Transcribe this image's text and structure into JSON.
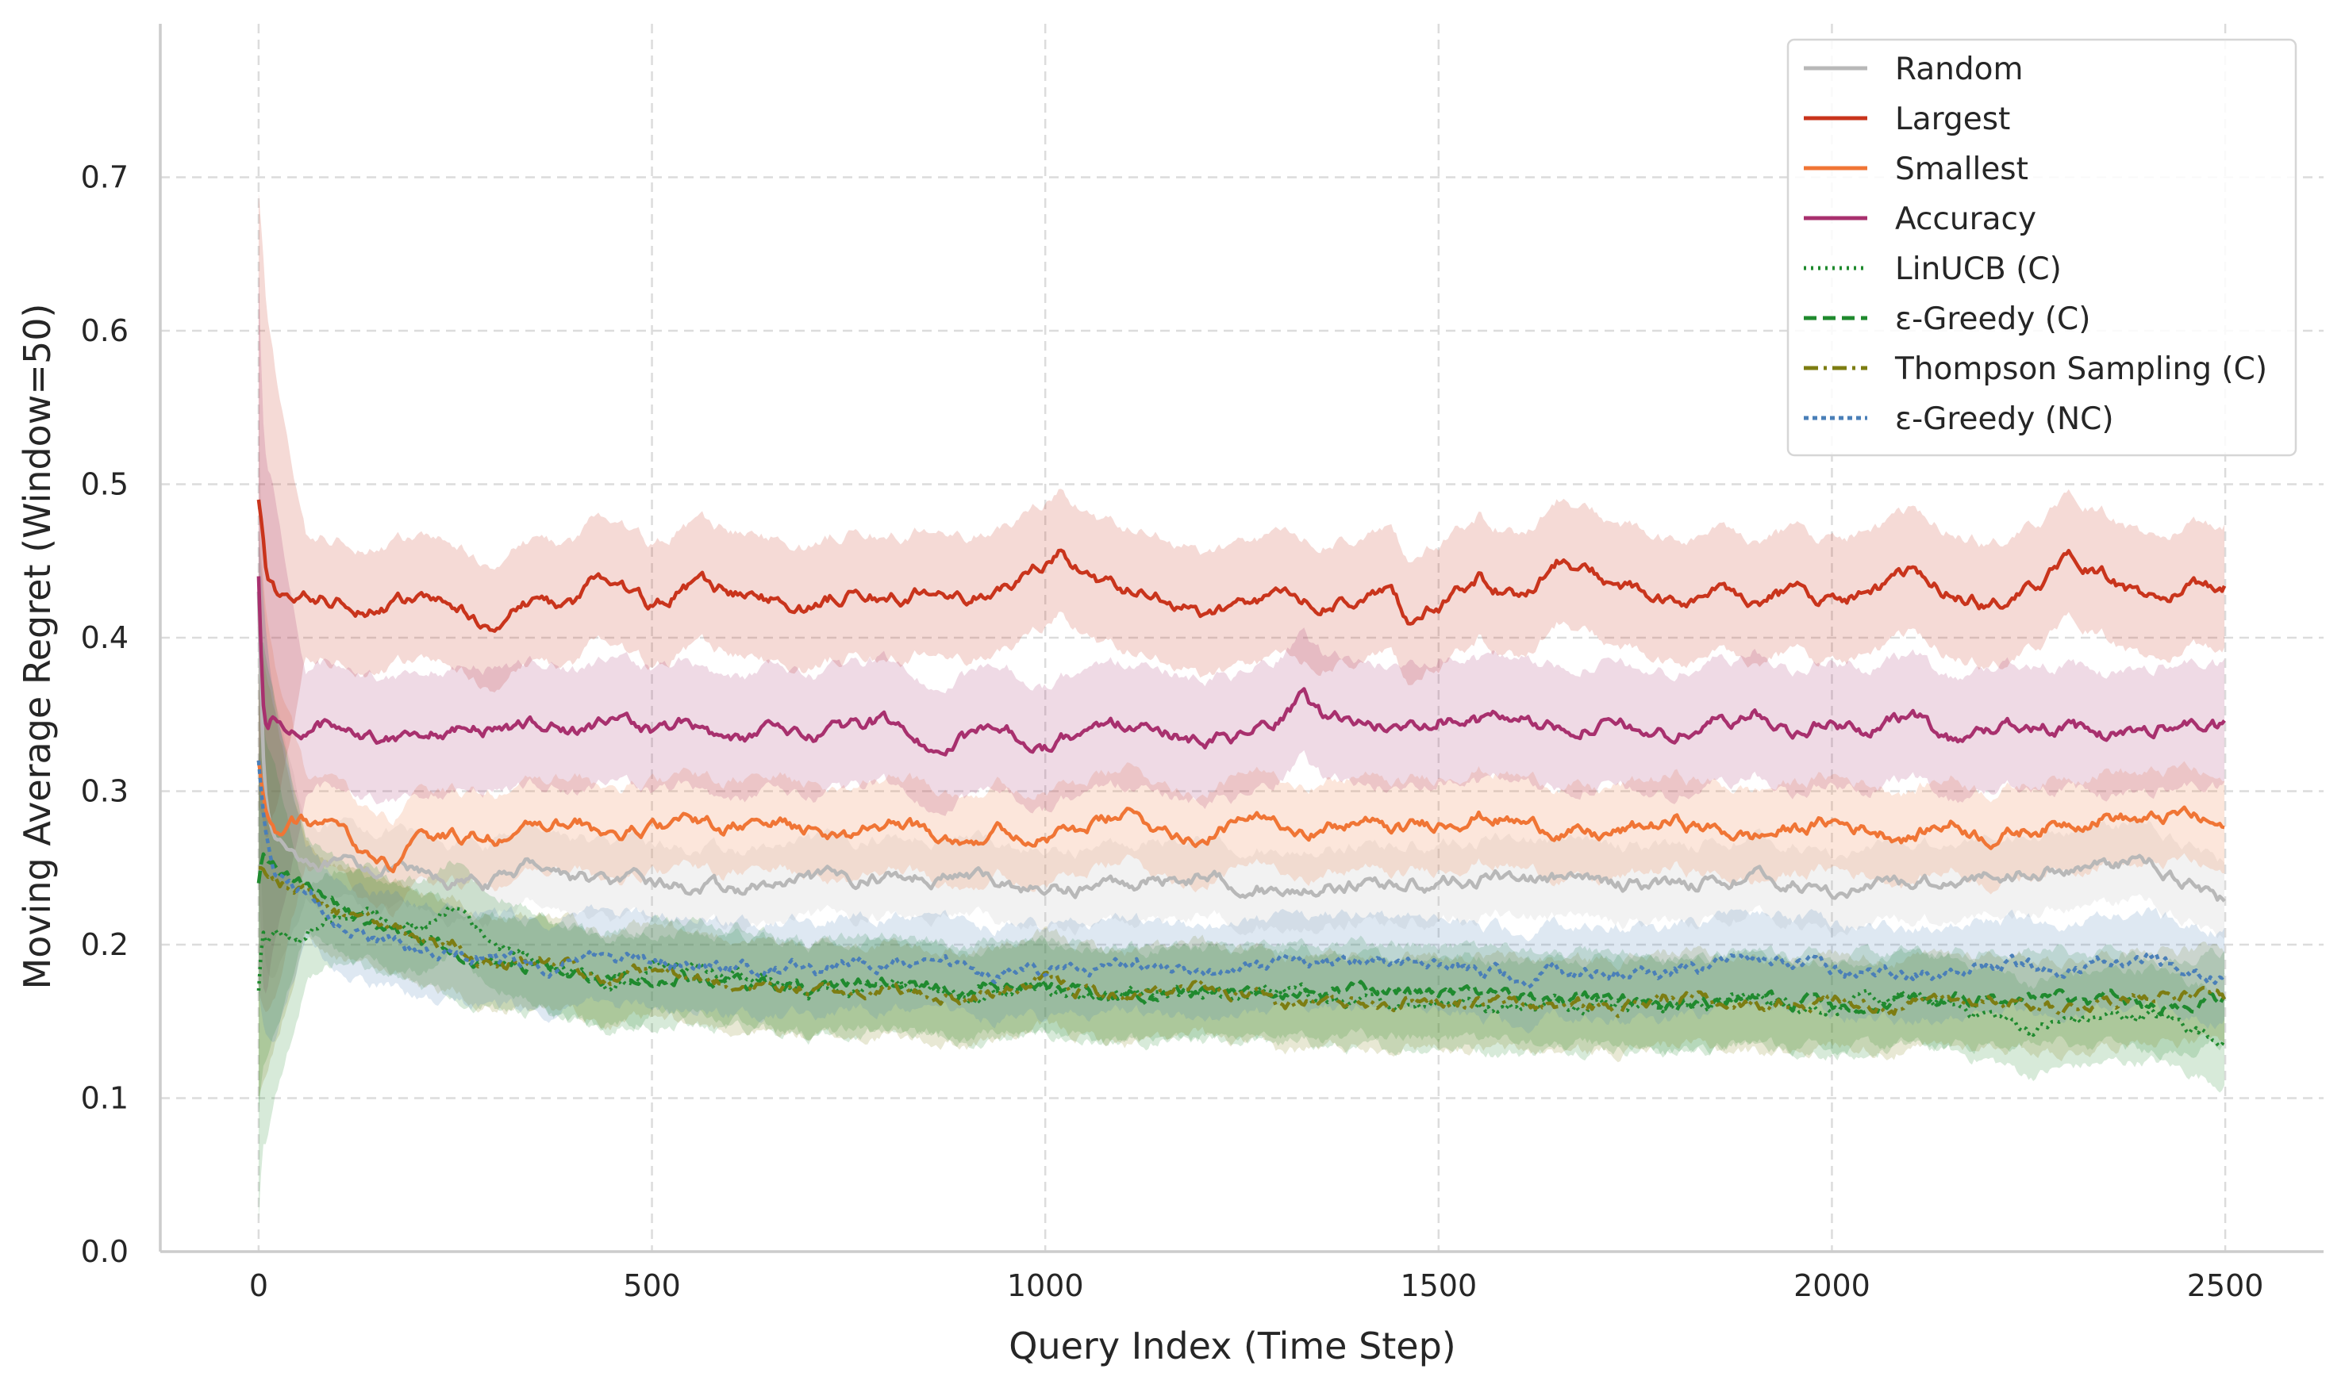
{
  "chart_data": {
    "type": "line",
    "title": "",
    "xlabel": "Query Index (Time Step)",
    "ylabel": "Moving Average Regret (Window=50)",
    "xlim": [
      -125,
      2625
    ],
    "ylim": [
      0.0,
      0.8
    ],
    "xticks": [
      0,
      500,
      1000,
      1500,
      2000,
      2500
    ],
    "xtick_labels": [
      "0",
      "500",
      "1000",
      "1500",
      "2000",
      "2500"
    ],
    "yticks": [
      0.0,
      0.1,
      0.2,
      0.3,
      0.4,
      0.5,
      0.6,
      0.7
    ],
    "ytick_labels": [
      "0.0",
      "0.1",
      "0.2",
      "0.3",
      "0.4",
      "0.5",
      "0.6",
      "0.7"
    ],
    "grid": true,
    "legend_position": "top-right",
    "shaded_band": "variability band around each mean line",
    "series": [
      {
        "name": "Random",
        "color": "#b8b8b8",
        "dash": "solid",
        "x": [
          0,
          5,
          10,
          20,
          30,
          50,
          75,
          100,
          150,
          200,
          250,
          300,
          350,
          400,
          450,
          500,
          600,
          700,
          800,
          900,
          1000,
          1100,
          1200,
          1300,
          1400,
          1500,
          1600,
          1700,
          1800,
          1900,
          2000,
          2100,
          2200,
          2300,
          2400,
          2500
        ],
        "y": [
          0.43,
          0.33,
          0.29,
          0.27,
          0.265,
          0.26,
          0.255,
          0.25,
          0.25,
          0.245,
          0.24,
          0.24,
          0.255,
          0.245,
          0.24,
          0.24,
          0.235,
          0.24,
          0.245,
          0.245,
          0.235,
          0.24,
          0.245,
          0.235,
          0.24,
          0.24,
          0.245,
          0.24,
          0.24,
          0.245,
          0.235,
          0.24,
          0.245,
          0.25,
          0.255,
          0.23
        ],
        "band": 0.025
      },
      {
        "name": "Largest",
        "color": "#c9341c",
        "dash": "solid",
        "x": [
          0,
          5,
          10,
          20,
          50,
          100,
          150,
          200,
          250,
          280,
          300,
          350,
          400,
          430,
          470,
          500,
          550,
          600,
          650,
          700,
          750,
          800,
          850,
          900,
          950,
          1000,
          1020,
          1050,
          1100,
          1150,
          1200,
          1250,
          1300,
          1350,
          1400,
          1440,
          1460,
          1500,
          1550,
          1600,
          1650,
          1700,
          1750,
          1800,
          1850,
          1900,
          1950,
          2000,
          2050,
          2100,
          2150,
          2200,
          2250,
          2300,
          2350,
          2400,
          2450,
          2500
        ],
        "y": [
          0.49,
          0.47,
          0.44,
          0.43,
          0.425,
          0.425,
          0.42,
          0.425,
          0.42,
          0.41,
          0.41,
          0.425,
          0.42,
          0.44,
          0.43,
          0.42,
          0.435,
          0.43,
          0.425,
          0.42,
          0.43,
          0.425,
          0.43,
          0.425,
          0.43,
          0.45,
          0.455,
          0.44,
          0.43,
          0.425,
          0.415,
          0.42,
          0.43,
          0.42,
          0.425,
          0.43,
          0.41,
          0.42,
          0.44,
          0.425,
          0.45,
          0.44,
          0.43,
          0.42,
          0.43,
          0.425,
          0.43,
          0.425,
          0.43,
          0.44,
          0.43,
          0.42,
          0.43,
          0.45,
          0.44,
          0.425,
          0.43,
          0.435
        ],
        "band": 0.04
      },
      {
        "name": "Smallest",
        "color": "#f07535",
        "dash": "solid",
        "x": [
          0,
          5,
          10,
          20,
          50,
          100,
          150,
          170,
          200,
          250,
          300,
          350,
          400,
          450,
          500,
          550,
          600,
          650,
          700,
          750,
          800,
          850,
          900,
          950,
          1000,
          1050,
          1100,
          1150,
          1200,
          1250,
          1300,
          1350,
          1400,
          1450,
          1500,
          1550,
          1600,
          1650,
          1700,
          1750,
          1800,
          1850,
          1900,
          1950,
          2000,
          2050,
          2100,
          2150,
          2200,
          2250,
          2300,
          2350,
          2400,
          2450,
          2500
        ],
        "y": [
          0.32,
          0.3,
          0.285,
          0.275,
          0.28,
          0.275,
          0.255,
          0.25,
          0.265,
          0.27,
          0.27,
          0.275,
          0.28,
          0.27,
          0.275,
          0.28,
          0.275,
          0.28,
          0.275,
          0.27,
          0.28,
          0.275,
          0.27,
          0.275,
          0.27,
          0.275,
          0.285,
          0.275,
          0.27,
          0.28,
          0.28,
          0.275,
          0.28,
          0.275,
          0.28,
          0.285,
          0.28,
          0.275,
          0.27,
          0.275,
          0.28,
          0.275,
          0.27,
          0.275,
          0.28,
          0.275,
          0.27,
          0.28,
          0.27,
          0.275,
          0.28,
          0.285,
          0.28,
          0.285,
          0.275
        ],
        "band": 0.03
      },
      {
        "name": "Accuracy",
        "color": "#a8306e",
        "dash": "solid",
        "x": [
          0,
          5,
          10,
          20,
          50,
          100,
          150,
          200,
          250,
          300,
          350,
          400,
          450,
          500,
          550,
          600,
          650,
          700,
          750,
          800,
          850,
          900,
          950,
          1000,
          1050,
          1100,
          1150,
          1200,
          1250,
          1300,
          1330,
          1350,
          1400,
          1450,
          1500,
          1550,
          1600,
          1650,
          1700,
          1750,
          1800,
          1850,
          1900,
          1950,
          2000,
          2050,
          2100,
          2150,
          2200,
          2250,
          2300,
          2350,
          2400,
          2450,
          2500
        ],
        "y": [
          0.44,
          0.36,
          0.34,
          0.345,
          0.34,
          0.345,
          0.335,
          0.34,
          0.34,
          0.34,
          0.345,
          0.34,
          0.345,
          0.34,
          0.345,
          0.33,
          0.34,
          0.335,
          0.34,
          0.345,
          0.33,
          0.335,
          0.34,
          0.33,
          0.34,
          0.345,
          0.34,
          0.33,
          0.335,
          0.345,
          0.36,
          0.35,
          0.345,
          0.34,
          0.35,
          0.345,
          0.35,
          0.34,
          0.345,
          0.34,
          0.335,
          0.345,
          0.35,
          0.34,
          0.345,
          0.34,
          0.35,
          0.335,
          0.34,
          0.345,
          0.34,
          0.335,
          0.34,
          0.345,
          0.34
        ],
        "band": 0.04
      },
      {
        "name": "LinUCB (C)",
        "color": "#1f8a2e",
        "dash": "dotted",
        "x": [
          0,
          5,
          10,
          20,
          50,
          75,
          100,
          150,
          200,
          250,
          300,
          350,
          400,
          450,
          500,
          600,
          700,
          800,
          900,
          1000,
          1100,
          1200,
          1300,
          1400,
          1500,
          1600,
          1700,
          1800,
          1900,
          2000,
          2100,
          2200,
          2250,
          2300,
          2400,
          2500
        ],
        "y": [
          0.17,
          0.21,
          0.2,
          0.21,
          0.2,
          0.215,
          0.22,
          0.215,
          0.21,
          0.225,
          0.205,
          0.19,
          0.18,
          0.175,
          0.185,
          0.18,
          0.17,
          0.175,
          0.165,
          0.17,
          0.165,
          0.165,
          0.17,
          0.16,
          0.165,
          0.16,
          0.165,
          0.16,
          0.165,
          0.16,
          0.165,
          0.155,
          0.145,
          0.15,
          0.155,
          0.14
        ],
        "band": 0.03
      },
      {
        "name": "ε-Greedy (C)",
        "color": "#1f8a2e",
        "dash": "dashed",
        "x": [
          0,
          5,
          10,
          20,
          50,
          100,
          150,
          200,
          250,
          300,
          350,
          400,
          450,
          500,
          600,
          700,
          800,
          900,
          1000,
          1100,
          1200,
          1300,
          1400,
          1500,
          1600,
          1700,
          1800,
          1900,
          2000,
          2100,
          2200,
          2300,
          2400,
          2500
        ],
        "y": [
          0.24,
          0.26,
          0.255,
          0.25,
          0.24,
          0.225,
          0.21,
          0.2,
          0.195,
          0.19,
          0.185,
          0.18,
          0.18,
          0.18,
          0.175,
          0.17,
          0.175,
          0.17,
          0.175,
          0.165,
          0.17,
          0.165,
          0.17,
          0.17,
          0.165,
          0.165,
          0.16,
          0.165,
          0.16,
          0.165,
          0.165,
          0.165,
          0.16,
          0.165
        ],
        "band": 0.03
      },
      {
        "name": "Thompson Sampling (C)",
        "color": "#7d7d12",
        "dash": "dashdot",
        "x": [
          0,
          5,
          10,
          20,
          50,
          100,
          150,
          200,
          250,
          300,
          350,
          400,
          450,
          500,
          600,
          700,
          800,
          900,
          1000,
          1100,
          1200,
          1300,
          1400,
          1500,
          1600,
          1700,
          1800,
          1900,
          2000,
          2100,
          2200,
          2300,
          2400,
          2500
        ],
        "y": [
          0.25,
          0.25,
          0.245,
          0.24,
          0.235,
          0.225,
          0.215,
          0.205,
          0.2,
          0.19,
          0.185,
          0.185,
          0.18,
          0.18,
          0.175,
          0.17,
          0.17,
          0.165,
          0.175,
          0.165,
          0.17,
          0.16,
          0.165,
          0.165,
          0.16,
          0.16,
          0.165,
          0.16,
          0.165,
          0.16,
          0.165,
          0.16,
          0.17,
          0.165
        ],
        "band": 0.03
      },
      {
        "name": "ε-Greedy (NC)",
        "color": "#4a7fb8",
        "dash": "densedot",
        "x": [
          0,
          5,
          10,
          20,
          50,
          100,
          150,
          200,
          250,
          300,
          350,
          400,
          450,
          500,
          600,
          700,
          800,
          900,
          1000,
          1100,
          1200,
          1300,
          1400,
          1500,
          1600,
          1700,
          1800,
          1900,
          2000,
          2100,
          2200,
          2300,
          2400,
          2500
        ],
        "y": [
          0.32,
          0.29,
          0.27,
          0.25,
          0.235,
          0.215,
          0.205,
          0.195,
          0.19,
          0.19,
          0.185,
          0.19,
          0.19,
          0.19,
          0.185,
          0.185,
          0.19,
          0.185,
          0.18,
          0.185,
          0.18,
          0.185,
          0.19,
          0.185,
          0.18,
          0.185,
          0.18,
          0.19,
          0.185,
          0.18,
          0.185,
          0.185,
          0.19,
          0.18
        ],
        "band": 0.03
      }
    ]
  }
}
